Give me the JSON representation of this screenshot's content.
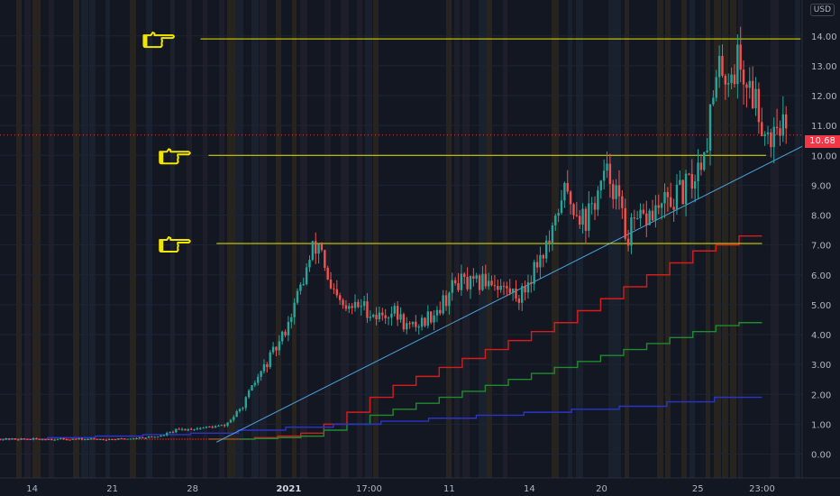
{
  "currency_label": "USD",
  "last_price": "10.68",
  "colors": {
    "background": "#131722",
    "up": "#26a69a",
    "down": "#ef5350",
    "resistance": "#e6e600",
    "trendline": "#4aa3df",
    "ladder_red": "#d81b1b",
    "ladder_green": "#1e8c2e",
    "ladder_blue": "#2b34c8",
    "pointer": "#f2e600"
  },
  "icons": [
    "pointing-hand-icon",
    "pointing-hand-icon",
    "pointing-hand-icon"
  ],
  "chart_data": {
    "type": "candlestick",
    "y_ticks": [
      "14.00",
      "13.00",
      "12.00",
      "11.00",
      "10.00",
      "9.00",
      "8.00",
      "7.00",
      "6.00",
      "5.00",
      "4.00",
      "3.00",
      "2.00",
      "1.00",
      "0.00"
    ],
    "ylim": [
      -0.8,
      15.2
    ],
    "x_ticks": [
      {
        "label": "14",
        "t": 0.04,
        "bold": false
      },
      {
        "label": "21",
        "t": 0.14,
        "bold": false
      },
      {
        "label": "28",
        "t": 0.24,
        "bold": false
      },
      {
        "label": "2021",
        "t": 0.36,
        "bold": true
      },
      {
        "label": "17:00",
        "t": 0.46,
        "bold": false
      },
      {
        "label": "11",
        "t": 0.56,
        "bold": false
      },
      {
        "label": "14",
        "t": 0.66,
        "bold": false
      },
      {
        "label": "20",
        "t": 0.75,
        "bold": false
      },
      {
        "label": "25",
        "t": 0.87,
        "bold": false
      },
      {
        "label": "23:00",
        "t": 0.95,
        "bold": false
      }
    ],
    "resistance_levels": [
      13.9,
      10.0,
      7.05
    ],
    "trendline": [
      {
        "t": 0.27,
        "y": 0.4
      },
      {
        "t": 1.0,
        "y": 10.3
      }
    ],
    "close_series": [
      [
        0.0,
        0.5
      ],
      [
        0.15,
        0.5
      ],
      [
        0.2,
        0.6
      ],
      [
        0.22,
        0.8
      ],
      [
        0.26,
        0.9
      ],
      [
        0.28,
        0.95
      ],
      [
        0.3,
        1.5
      ],
      [
        0.32,
        2.5
      ],
      [
        0.35,
        3.8
      ],
      [
        0.37,
        5.2
      ],
      [
        0.39,
        6.8
      ],
      [
        0.4,
        7.1
      ],
      [
        0.41,
        5.5
      ],
      [
        0.43,
        4.8
      ],
      [
        0.45,
        5.0
      ],
      [
        0.47,
        4.6
      ],
      [
        0.49,
        4.8
      ],
      [
        0.51,
        4.2
      ],
      [
        0.53,
        4.5
      ],
      [
        0.55,
        5.0
      ],
      [
        0.57,
        5.8
      ],
      [
        0.59,
        5.6
      ],
      [
        0.61,
        5.9
      ],
      [
        0.63,
        5.5
      ],
      [
        0.65,
        5.3
      ],
      [
        0.67,
        6.5
      ],
      [
        0.69,
        7.3
      ],
      [
        0.7,
        8.8
      ],
      [
        0.72,
        8.2
      ],
      [
        0.73,
        7.8
      ],
      [
        0.75,
        9.0
      ],
      [
        0.76,
        9.4
      ],
      [
        0.77,
        8.6
      ],
      [
        0.78,
        7.3
      ],
      [
        0.8,
        7.8
      ],
      [
        0.82,
        8.2
      ],
      [
        0.84,
        8.5
      ],
      [
        0.86,
        9.0
      ],
      [
        0.87,
        9.6
      ],
      [
        0.88,
        10.5
      ],
      [
        0.89,
        12.0
      ],
      [
        0.9,
        13.0
      ],
      [
        0.91,
        12.7
      ],
      [
        0.92,
        13.2
      ],
      [
        0.93,
        12.5
      ],
      [
        0.94,
        12.0
      ],
      [
        0.95,
        11.2
      ],
      [
        0.96,
        10.6
      ],
      [
        0.97,
        11.4
      ],
      [
        0.98,
        10.7
      ]
    ],
    "red_ladder": [
      0.5,
      0.5,
      0.55,
      0.6,
      0.7,
      1.0,
      1.4,
      1.9,
      2.3,
      2.6,
      2.9,
      3.2,
      3.5,
      3.8,
      4.1,
      4.4,
      4.8,
      5.2,
      5.6,
      6.0,
      6.4,
      6.8,
      7.0,
      7.3
    ],
    "green_ladder": [
      0.5,
      0.5,
      0.52,
      0.55,
      0.6,
      0.8,
      1.0,
      1.3,
      1.5,
      1.7,
      1.9,
      2.1,
      2.3,
      2.5,
      2.7,
      2.9,
      3.1,
      3.3,
      3.5,
      3.7,
      3.9,
      4.1,
      4.3,
      4.4
    ],
    "blue_ladder": [
      0.5,
      0.55,
      0.6,
      0.65,
      0.7,
      0.8,
      0.9,
      1.0,
      1.1,
      1.2,
      1.3,
      1.4,
      1.5,
      1.6,
      1.75,
      1.9
    ]
  }
}
